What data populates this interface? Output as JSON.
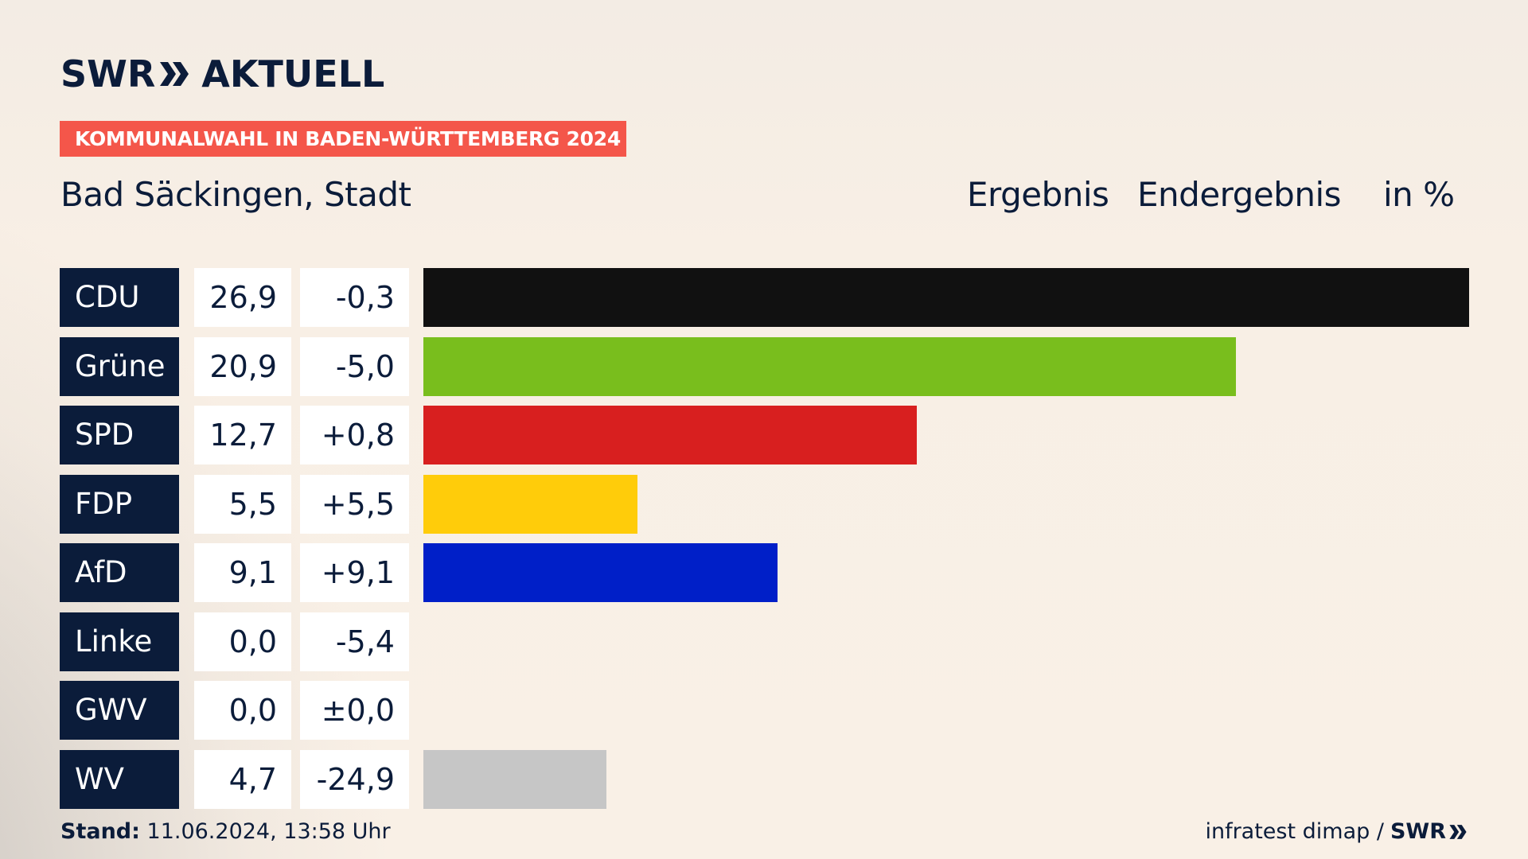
{
  "brand": {
    "logo_left": "SWR",
    "logo_right": "AKTUELL",
    "banner": "KOMMUNALWAHL IN BADEN-WÜRTTEMBERG 2024"
  },
  "header": {
    "place": "Bad Säckingen, Stadt",
    "col_result": "Ergebnis",
    "col_final": "Endergebnis",
    "col_unit": "in %"
  },
  "chart_data": {
    "type": "bar",
    "orientation": "horizontal",
    "title": "Bad Säckingen, Stadt",
    "categories": [
      "CDU",
      "Grüne",
      "SPD",
      "FDP",
      "AfD",
      "Linke",
      "GWV",
      "WV"
    ],
    "values": [
      26.9,
      20.9,
      12.7,
      5.5,
      9.1,
      0.0,
      0.0,
      4.7
    ],
    "value_labels": [
      "26,9",
      "20,9",
      "12,7",
      "5,5",
      "9,1",
      "0,0",
      "0,0",
      "4,7"
    ],
    "diff_labels": [
      "-0,3",
      "-5,0",
      "+0,8",
      "+5,5",
      "+9,1",
      "-5,4",
      "±0,0",
      "-24,9"
    ],
    "diffs": [
      -0.3,
      -5.0,
      0.8,
      5.5,
      9.1,
      -5.4,
      0.0,
      -24.9
    ],
    "colors": [
      "#111111",
      "#79be1d",
      "#d81f1f",
      "#ffcc0a",
      "#001fc8",
      "#be3075",
      "#8c8c8c",
      "#c6c6c6"
    ],
    "unit": "%",
    "xlim": [
      0,
      26.9
    ],
    "grid": false,
    "legend": "none"
  },
  "footer": {
    "stand_label": "Stand:",
    "stand_value": "11.06.2024, 13:58 Uhr",
    "source": "infratest dimap /",
    "source_brand": "SWR"
  }
}
